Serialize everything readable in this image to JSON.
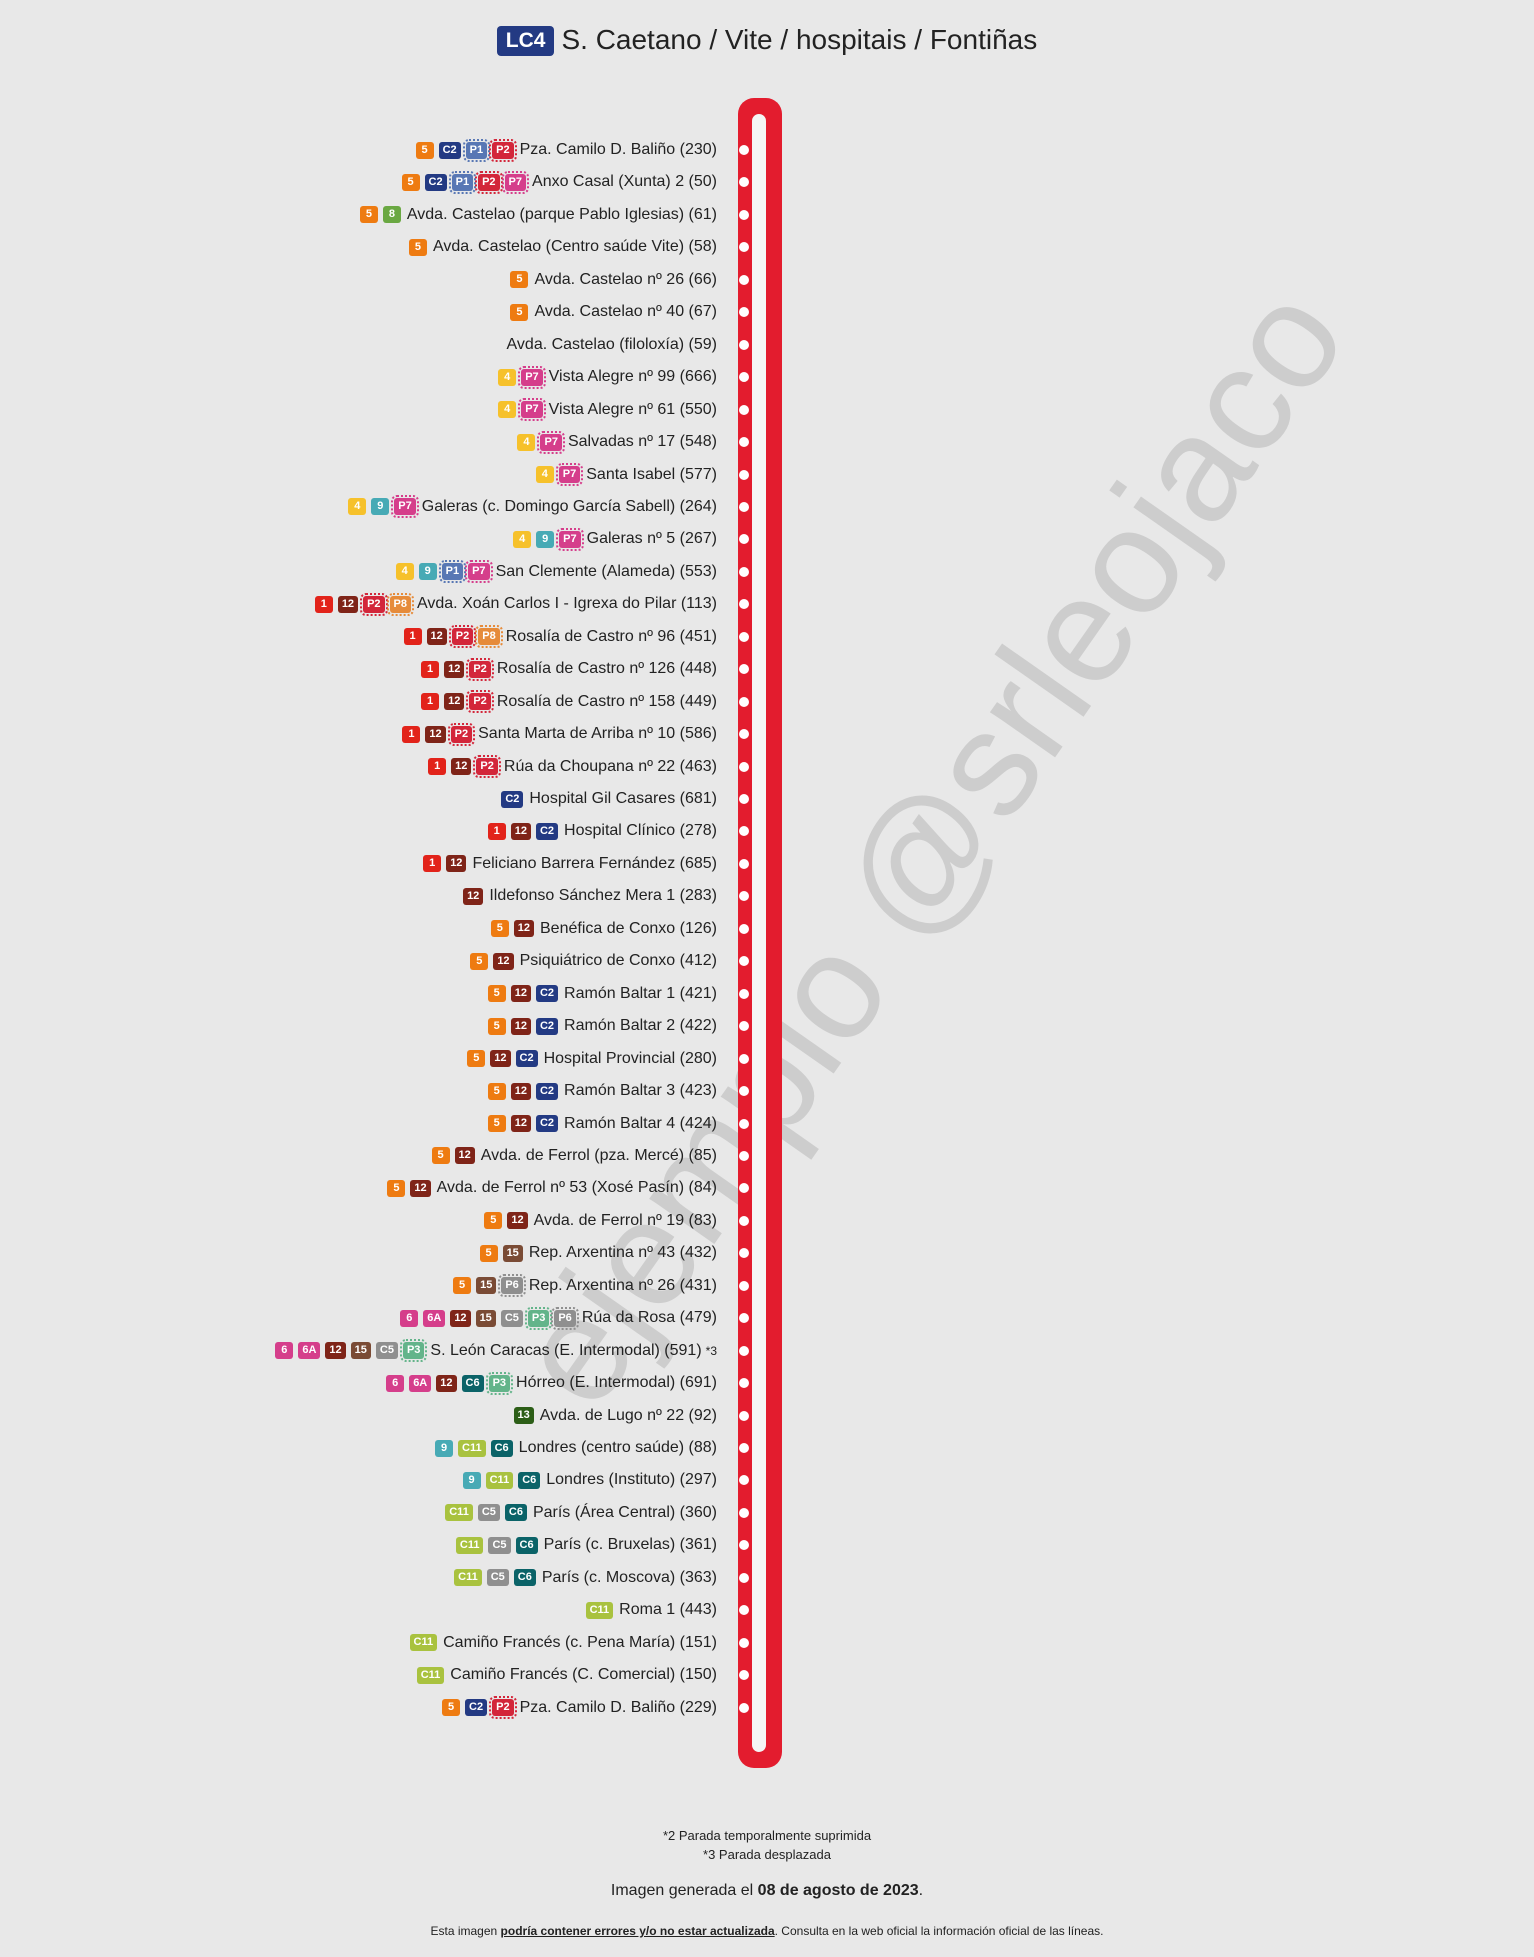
{
  "title": {
    "line_code": "LC4",
    "text": "S. Caetano / Vite / hospitais / Fontiñas"
  },
  "watermark": "ejemplo @srleojaco",
  "colors": {
    "track": "#e31c2e",
    "lines": {
      "1": "#e2231a",
      "4": "#f6c12b",
      "5": "#ee7b11",
      "6": "#d53e8b",
      "6A": "#d53e8b",
      "8": "#6aa842",
      "9": "#47aab5",
      "12": "#7f2418",
      "13": "#2c5e17",
      "15": "#7a4b35",
      "C2": "#233a83",
      "C5": "#8f8f8f",
      "C6": "#0b6368",
      "C11": "#a9c23f",
      "P1": "#5877b4",
      "P2": "#d3263a",
      "P3": "#63b48a",
      "P6": "#8f8f8f",
      "P7": "#d53e8b",
      "P8": "#e68b3a"
    }
  },
  "stops": [
    {
      "name": "Pza. Camilo D. Baliño (230)",
      "lines": [
        "5",
        "C2",
        "P1",
        "P2"
      ]
    },
    {
      "name": "Anxo Casal (Xunta) 2 (50)",
      "lines": [
        "5",
        "C2",
        "P1",
        "P2",
        "P7"
      ]
    },
    {
      "name": "Avda. Castelao (parque Pablo Iglesias) (61)",
      "lines": [
        "5",
        "8"
      ]
    },
    {
      "name": "Avda. Castelao (Centro saúde Vite) (58)",
      "lines": [
        "5"
      ]
    },
    {
      "name": "Avda. Castelao nº 26 (66)",
      "lines": [
        "5"
      ]
    },
    {
      "name": "Avda. Castelao nº 40 (67)",
      "lines": [
        "5"
      ]
    },
    {
      "name": "Avda. Castelao (filoloxía) (59)",
      "lines": []
    },
    {
      "name": "Vista Alegre nº 99 (666)",
      "lines": [
        "4",
        "P7"
      ]
    },
    {
      "name": "Vista Alegre nº 61 (550)",
      "lines": [
        "4",
        "P7"
      ]
    },
    {
      "name": "Salvadas nº 17 (548)",
      "lines": [
        "4",
        "P7"
      ]
    },
    {
      "name": "Santa Isabel (577)",
      "lines": [
        "4",
        "P7"
      ]
    },
    {
      "name": "Galeras (c. Domingo García Sabell) (264)",
      "lines": [
        "4",
        "9",
        "P7"
      ]
    },
    {
      "name": "Galeras nº 5 (267)",
      "lines": [
        "4",
        "9",
        "P7"
      ]
    },
    {
      "name": "San Clemente (Alameda) (553)",
      "lines": [
        "4",
        "9",
        "P1",
        "P7"
      ]
    },
    {
      "name": "Avda. Xoán Carlos I - Igrexa do Pilar (113)",
      "lines": [
        "1",
        "12",
        "P2",
        "P8"
      ]
    },
    {
      "name": "Rosalía de Castro nº 96 (451)",
      "lines": [
        "1",
        "12",
        "P2",
        "P8"
      ]
    },
    {
      "name": "Rosalía de Castro nº 126 (448)",
      "lines": [
        "1",
        "12",
        "P2"
      ]
    },
    {
      "name": "Rosalía de Castro nº 158 (449)",
      "lines": [
        "1",
        "12",
        "P2"
      ]
    },
    {
      "name": "Santa Marta de Arriba nº 10 (586)",
      "lines": [
        "1",
        "12",
        "P2"
      ]
    },
    {
      "name": "Rúa da Choupana nº 22 (463)",
      "lines": [
        "1",
        "12",
        "P2"
      ]
    },
    {
      "name": "Hospital Gil Casares (681)",
      "lines": [
        "C2"
      ]
    },
    {
      "name": "Hospital Clínico (278)",
      "lines": [
        "1",
        "12",
        "C2"
      ]
    },
    {
      "name": "Feliciano Barrera Fernández (685)",
      "lines": [
        "1",
        "12"
      ]
    },
    {
      "name": "Ildefonso Sánchez Mera 1 (283)",
      "lines": [
        "12"
      ]
    },
    {
      "name": "Benéfica de Conxo (126)",
      "lines": [
        "5",
        "12"
      ]
    },
    {
      "name": "Psiquiátrico de Conxo (412)",
      "lines": [
        "5",
        "12"
      ]
    },
    {
      "name": "Ramón Baltar 1 (421)",
      "lines": [
        "5",
        "12",
        "C2"
      ]
    },
    {
      "name": "Ramón Baltar 2 (422)",
      "lines": [
        "5",
        "12",
        "C2"
      ]
    },
    {
      "name": "Hospital Provincial (280)",
      "lines": [
        "5",
        "12",
        "C2"
      ]
    },
    {
      "name": "Ramón Baltar 3 (423)",
      "lines": [
        "5",
        "12",
        "C2"
      ]
    },
    {
      "name": "Ramón Baltar 4 (424)",
      "lines": [
        "5",
        "12",
        "C2"
      ]
    },
    {
      "name": "Avda. de Ferrol (pza. Mercé) (85)",
      "lines": [
        "5",
        "12"
      ]
    },
    {
      "name": "Avda. de Ferrol nº 53 (Xosé Pasín) (84)",
      "lines": [
        "5",
        "12"
      ]
    },
    {
      "name": "Avda. de Ferrol nº 19 (83)",
      "lines": [
        "5",
        "12"
      ]
    },
    {
      "name": "Rep. Arxentina nº 43 (432)",
      "lines": [
        "5",
        "15"
      ]
    },
    {
      "name": "Rep. Arxentina nº 26 (431)",
      "lines": [
        "5",
        "15",
        "P6"
      ]
    },
    {
      "name": "Rúa da Rosa (479)",
      "lines": [
        "6",
        "6A",
        "12",
        "15",
        "C5",
        "P3",
        "P6"
      ]
    },
    {
      "name": "S. León Caracas (E. Intermodal) (591)",
      "lines": [
        "6",
        "6A",
        "12",
        "15",
        "C5",
        "P3"
      ],
      "note": "*3"
    },
    {
      "name": "Hórreo (E. Intermodal) (691)",
      "lines": [
        "6",
        "6A",
        "12",
        "C6",
        "P3"
      ]
    },
    {
      "name": "Avda. de Lugo nº 22 (92)",
      "lines": [
        "13"
      ]
    },
    {
      "name": "Londres (centro saúde) (88)",
      "lines": [
        "9",
        "C11",
        "C6"
      ]
    },
    {
      "name": "Londres (Instituto) (297)",
      "lines": [
        "9",
        "C11",
        "C6"
      ]
    },
    {
      "name": "París (Área Central) (360)",
      "lines": [
        "C11",
        "C5",
        "C6"
      ]
    },
    {
      "name": "París (c. Bruxelas) (361)",
      "lines": [
        "C11",
        "C5",
        "C6"
      ]
    },
    {
      "name": "París (c. Moscova) (363)",
      "lines": [
        "C11",
        "C5",
        "C6"
      ]
    },
    {
      "name": "Roma 1 (443)",
      "lines": [
        "C11"
      ]
    },
    {
      "name": "Camiño Francés (c. Pena María) (151)",
      "lines": [
        "C11"
      ]
    },
    {
      "name": "Camiño Francés (C. Comercial) (150)",
      "lines": [
        "C11"
      ]
    },
    {
      "name": "Pza. Camilo D. Baliño (229)",
      "lines": [
        "5",
        "C2",
        "P2"
      ]
    }
  ],
  "footnotes": [
    "*2 Parada temporalmente suprimida",
    "*3 Parada desplazada"
  ],
  "generated": {
    "prefix": "Imagen generada el ",
    "date": "08 de agosto de 2023",
    "suffix": "."
  },
  "disclaimer": {
    "prefix": "Esta imagen ",
    "emphasis": "podría contener errores y/o no estar actualizada",
    "suffix": ". Consulta en la web oficial la información oficial de las líneas."
  }
}
